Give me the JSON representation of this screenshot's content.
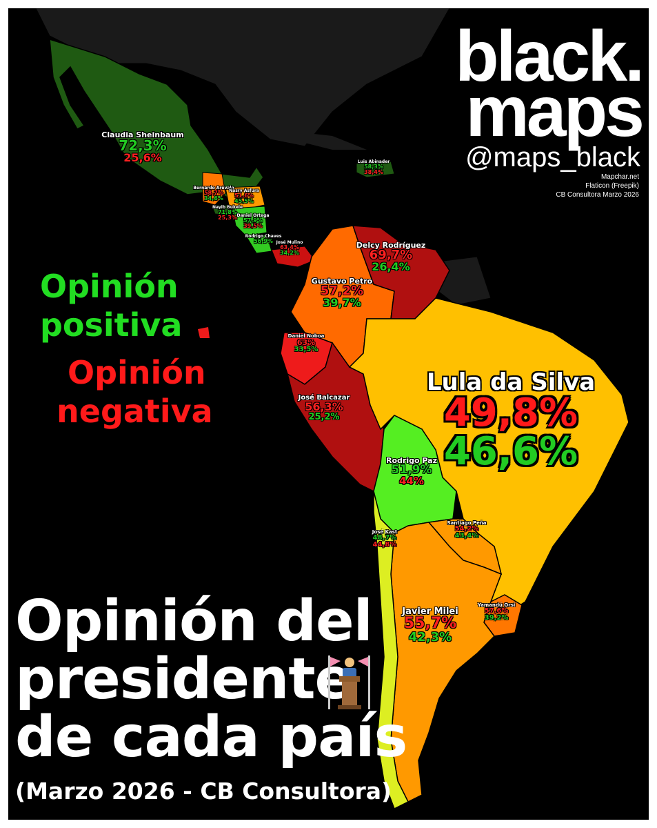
{
  "brand": {
    "line1": "black.",
    "line2": "maps",
    "handle": "@maps_black",
    "credits": [
      "Mapchar.net",
      "Flaticon (Freepik)",
      "CB Consultora Marzo 2026"
    ]
  },
  "legend": {
    "positive_line1": "Opinión",
    "positive_line2": "positiva",
    "negative_line1": "Opinión",
    "negative_line2": "negativa",
    "positive_color": "#22dd22",
    "negative_color": "#ff1a1a"
  },
  "title": {
    "line1": "Opinión del",
    "line2": "presidente",
    "line3": "de cada país",
    "icon": "podium-speaker-icon",
    "subtitle": "(Marzo 2026 - CB Consultora)"
  },
  "presidents": {
    "mexico": {
      "name": "Claudia Sheinbaum",
      "positive": "72,3%",
      "negative": "25,6%",
      "fill": "#1f5a12"
    },
    "dominican": {
      "name": "Luis Abinader",
      "positive": "58,3%",
      "negative": "38,4%",
      "fill": "#1f5a12"
    },
    "guatemala": {
      "name": "Bernardo Arévalo",
      "positive": "34,6%",
      "negative": "58,7%",
      "fill": "#ff7700"
    },
    "honduras": {
      "name": "Nasry Asfura",
      "positive": "45,5%",
      "negative": "51,6%",
      "fill": "#ff9900"
    },
    "elsalvador": {
      "name": "Nayib Bukele",
      "positive": "71,8%",
      "negative": "25,3%",
      "fill": "#1f5a12"
    },
    "nicaragua": {
      "name": "Daniel Ortega",
      "positive": "57,9%",
      "negative": "39,5%",
      "fill": "#33cc22"
    },
    "costarica": {
      "name": "Rodrigo Chaves",
      "positive": "56,9%",
      "negative": "40,1%",
      "fill": "#33cc22"
    },
    "panama": {
      "name": "José Mulino",
      "positive": "34,2%",
      "negative": "63,4%",
      "fill": "#cc1111"
    },
    "venezuela": {
      "name": "Delcy Rodríguez",
      "positive": "26,4%",
      "negative": "69,7%",
      "fill": "#b01010"
    },
    "colombia": {
      "name": "Gustavo Petro",
      "positive": "39,7%",
      "negative": "57,2%",
      "fill": "#ff6a00"
    },
    "ecuador": {
      "name": "Daniel Noboa",
      "positive": "33,5%",
      "negative": "63%",
      "fill": "#ee1b1b"
    },
    "peru": {
      "name": "José Balcazar",
      "positive": "25,2%",
      "negative": "56,3%",
      "fill": "#b01010"
    },
    "brazil": {
      "name": "Lula da Silva",
      "positive": "46,6%",
      "negative": "49,8%",
      "fill": "#ffc000"
    },
    "bolivia": {
      "name": "Rodrigo Paz",
      "positive": "51,9%",
      "negative": "44%",
      "fill": "#55ee22"
    },
    "paraguay": {
      "name": "Santiago Peña",
      "positive": "43,4%",
      "negative": "54,2%",
      "fill": "#ff9900"
    },
    "chile": {
      "name": "José Kast",
      "positive": "48,7%",
      "negative": "44,8%",
      "fill": "#ddee22"
    },
    "argentina": {
      "name": "Javier Milei",
      "positive": "42,3%",
      "negative": "55,7%",
      "fill": "#ff9900"
    },
    "uruguay": {
      "name": "Yamandú Orsi",
      "positive": "39,2%",
      "negative": "57,6%",
      "fill": "#ff7700"
    }
  },
  "colors": {
    "background": "#000000",
    "unrated_land": "#1a1a1a"
  }
}
